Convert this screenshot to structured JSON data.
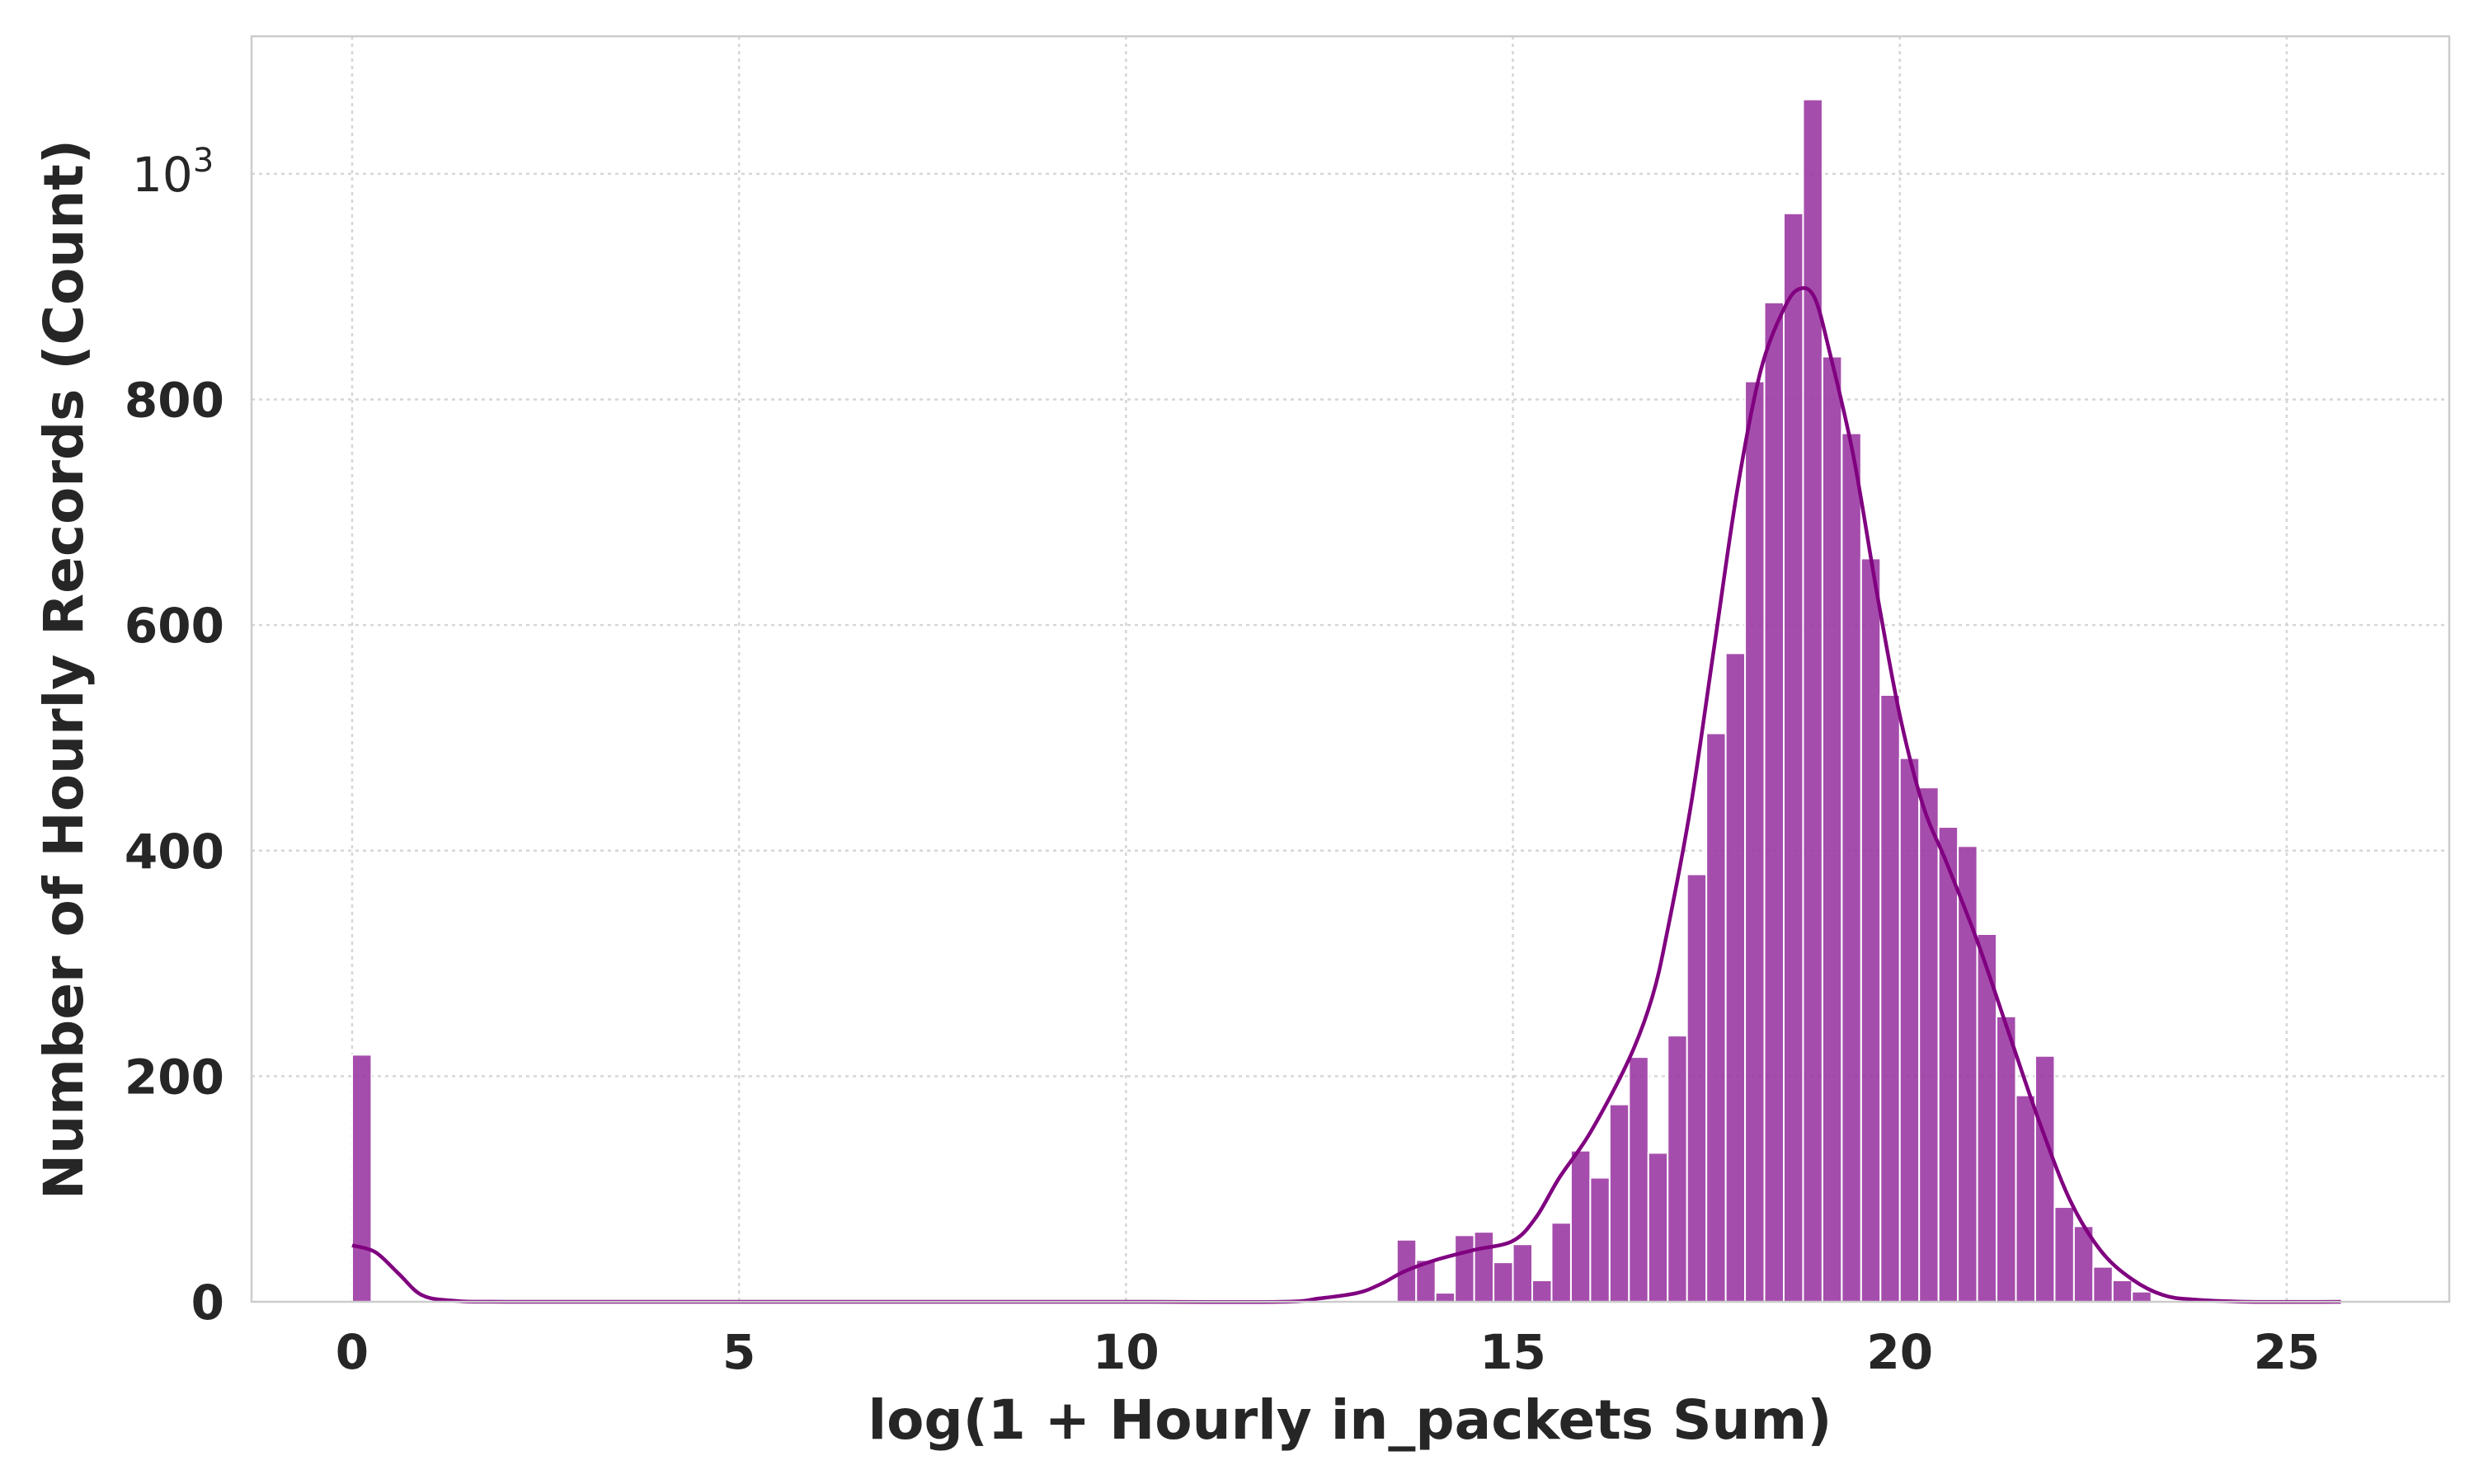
{
  "chart_data": {
    "type": "bar",
    "subtype": "histogram with KDE",
    "xlabel": "log(1 + Hourly in_packets Sum)",
    "ylabel": "Number of Hourly Records (Count)",
    "xlim": [
      -1.3,
      27.1
    ],
    "ylim": [
      0,
      1122
    ],
    "x_ticks": [
      0,
      5,
      10,
      15,
      20,
      25
    ],
    "y_ticks": [
      0,
      200,
      400,
      600,
      800
    ],
    "y_offset_text": {
      "base": "10",
      "exponent": "3"
    },
    "grid": true,
    "bar_color": "#9b3aa3",
    "kde_color": "#800080",
    "bin_width": 0.25,
    "bars": [
      {
        "x": 0.0,
        "y": 219
      },
      {
        "x": 13.5,
        "y": 55
      },
      {
        "x": 13.75,
        "y": 37
      },
      {
        "x": 14.0,
        "y": 8
      },
      {
        "x": 14.25,
        "y": 59
      },
      {
        "x": 14.5,
        "y": 62
      },
      {
        "x": 14.75,
        "y": 35
      },
      {
        "x": 15.0,
        "y": 51
      },
      {
        "x": 15.25,
        "y": 19
      },
      {
        "x": 15.5,
        "y": 70
      },
      {
        "x": 15.75,
        "y": 134
      },
      {
        "x": 16.0,
        "y": 110
      },
      {
        "x": 16.25,
        "y": 175
      },
      {
        "x": 16.5,
        "y": 217
      },
      {
        "x": 16.75,
        "y": 132
      },
      {
        "x": 17.0,
        "y": 236
      },
      {
        "x": 17.25,
        "y": 379
      },
      {
        "x": 17.5,
        "y": 504
      },
      {
        "x": 17.75,
        "y": 575
      },
      {
        "x": 18.0,
        "y": 816
      },
      {
        "x": 18.25,
        "y": 886
      },
      {
        "x": 18.5,
        "y": 965
      },
      {
        "x": 18.75,
        "y": 1066
      },
      {
        "x": 19.0,
        "y": 838
      },
      {
        "x": 19.25,
        "y": 770
      },
      {
        "x": 19.5,
        "y": 659
      },
      {
        "x": 19.75,
        "y": 538
      },
      {
        "x": 20.0,
        "y": 482
      },
      {
        "x": 20.25,
        "y": 456
      },
      {
        "x": 20.5,
        "y": 421
      },
      {
        "x": 20.75,
        "y": 404
      },
      {
        "x": 21.0,
        "y": 326
      },
      {
        "x": 21.25,
        "y": 253
      },
      {
        "x": 21.5,
        "y": 183
      },
      {
        "x": 21.75,
        "y": 218
      },
      {
        "x": 22.0,
        "y": 84
      },
      {
        "x": 22.25,
        "y": 67
      },
      {
        "x": 22.5,
        "y": 31
      },
      {
        "x": 22.75,
        "y": 19
      },
      {
        "x": 23.0,
        "y": 9
      }
    ],
    "kde": [
      [
        0.0,
        50
      ],
      [
        0.3,
        44
      ],
      [
        0.6,
        25
      ],
      [
        0.9,
        6
      ],
      [
        1.3,
        1
      ],
      [
        2.0,
        0
      ],
      [
        5.0,
        0
      ],
      [
        10.0,
        0
      ],
      [
        12.0,
        0
      ],
      [
        12.5,
        3
      ],
      [
        13.0,
        8
      ],
      [
        13.3,
        16
      ],
      [
        13.6,
        27
      ],
      [
        14.0,
        37
      ],
      [
        14.5,
        46
      ],
      [
        15.0,
        54
      ],
      [
        15.3,
        75
      ],
      [
        15.6,
        110
      ],
      [
        16.0,
        150
      ],
      [
        16.5,
        215
      ],
      [
        16.8,
        270
      ],
      [
        17.0,
        330
      ],
      [
        17.3,
        440
      ],
      [
        17.6,
        580
      ],
      [
        17.9,
        720
      ],
      [
        18.2,
        825
      ],
      [
        18.5,
        880
      ],
      [
        18.7,
        898
      ],
      [
        18.9,
        890
      ],
      [
        19.1,
        840
      ],
      [
        19.4,
        750
      ],
      [
        19.7,
        630
      ],
      [
        20.0,
        520
      ],
      [
        20.3,
        440
      ],
      [
        20.6,
        390
      ],
      [
        21.0,
        320
      ],
      [
        21.4,
        240
      ],
      [
        21.8,
        160
      ],
      [
        22.2,
        90
      ],
      [
        22.6,
        45
      ],
      [
        23.0,
        20
      ],
      [
        23.4,
        6
      ],
      [
        23.8,
        2
      ],
      [
        24.5,
        0
      ],
      [
        25.7,
        0
      ]
    ]
  }
}
